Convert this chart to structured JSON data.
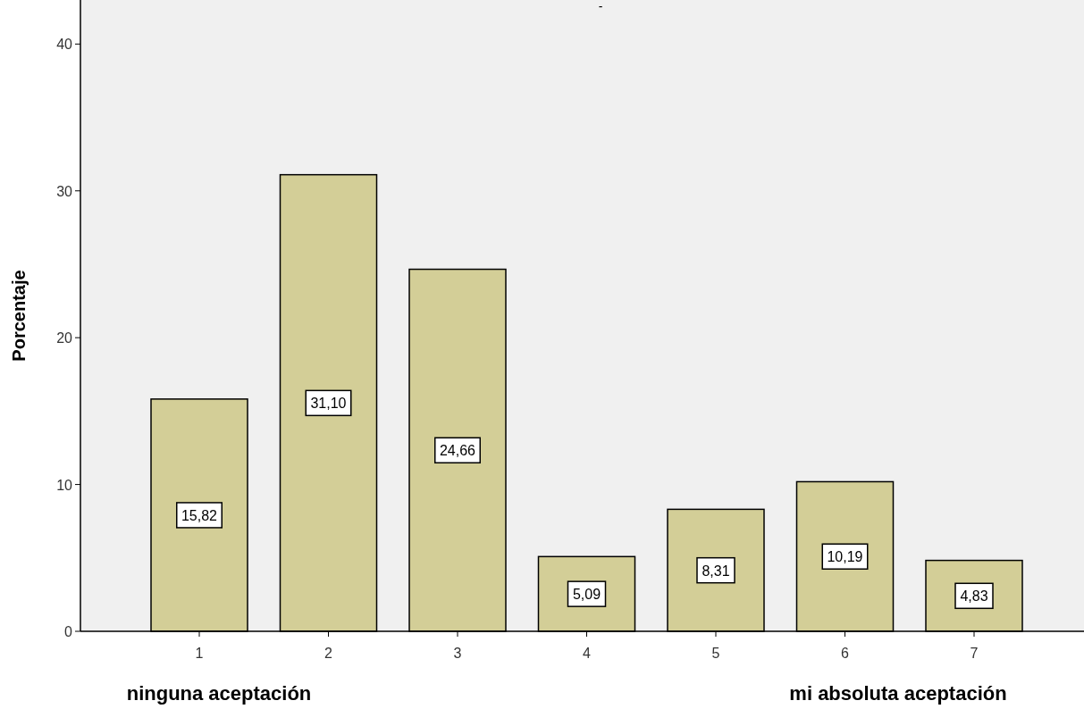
{
  "chart_data": {
    "type": "bar",
    "title": "-",
    "ylabel": "Porcentaje",
    "categories": [
      "1",
      "2",
      "3",
      "4",
      "5",
      "6",
      "7"
    ],
    "values": [
      15.82,
      31.1,
      24.66,
      5.09,
      8.31,
      10.19,
      4.83
    ],
    "value_labels": [
      "15,82",
      "31,10",
      "24,66",
      "5,09",
      "8,31",
      "10,19",
      "4,83"
    ],
    "color": "#d3ce97",
    "ylim": [
      0,
      43
    ],
    "yticks": [
      0,
      10,
      20,
      30,
      40
    ],
    "grid": false,
    "annotations": [
      "ninguna aceptación",
      "mi absoluta aceptación"
    ]
  }
}
